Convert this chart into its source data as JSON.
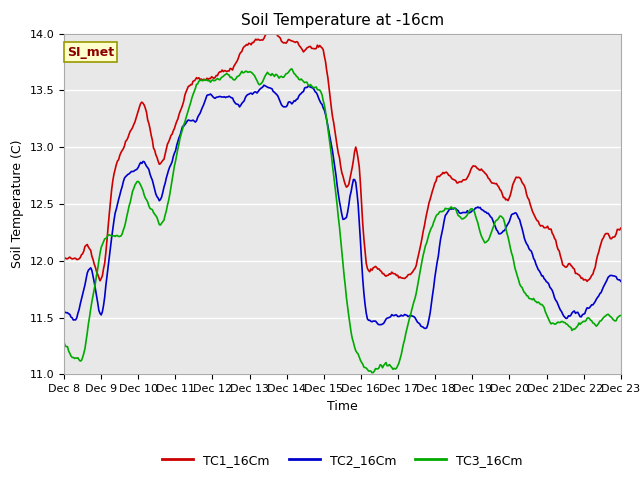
{
  "title": "Soil Temperature at -16cm",
  "xlabel": "Time",
  "ylabel": "Soil Temperature (C)",
  "ylim": [
    11.0,
    14.0
  ],
  "yticks": [
    11.0,
    11.5,
    12.0,
    12.5,
    13.0,
    13.5,
    14.0
  ],
  "xtick_labels": [
    "Dec 8",
    "Dec 9",
    "Dec 10",
    "Dec 11",
    "Dec 12",
    "Dec 13",
    "Dec 14",
    "Dec 15",
    "Dec 16",
    "Dec 17",
    "Dec 18",
    "Dec 19",
    "Dec 20",
    "Dec 21",
    "Dec 22",
    "Dec 23"
  ],
  "legend_labels": [
    "TC1_16Cm",
    "TC2_16Cm",
    "TC3_16Cm"
  ],
  "line_colors": [
    "#cc0000",
    "#0000cc",
    "#00aa00"
  ],
  "line_width": 1.2,
  "annotation_text": "SI_met",
  "annotation_bg": "#ffffcc",
  "annotation_border": "#999900",
  "plot_bg_color": "#e8e8e8",
  "title_fontsize": 11,
  "axis_label_fontsize": 9,
  "tick_label_fontsize": 8,
  "legend_fontsize": 9
}
